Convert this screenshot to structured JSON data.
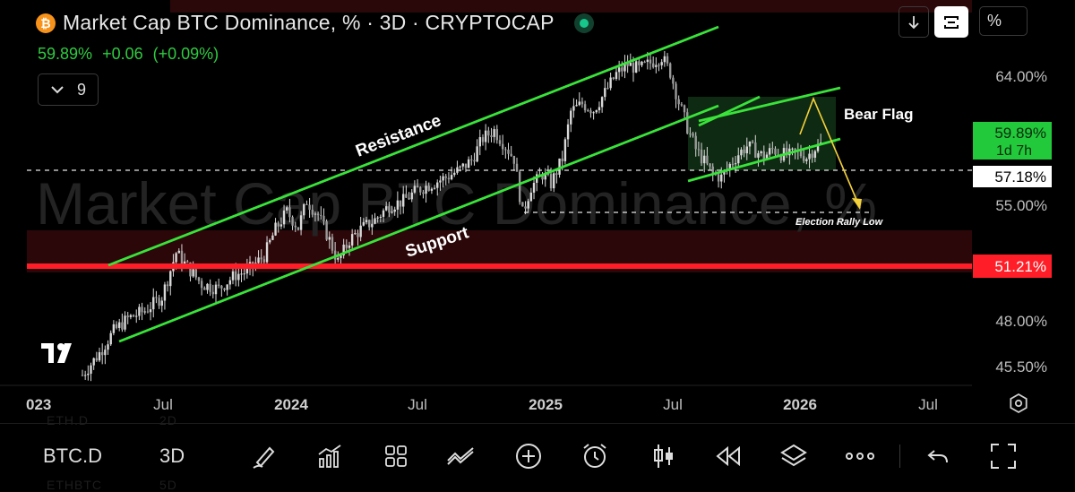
{
  "header": {
    "title": "Market Cap BTC Dominance, % · 3D · CRYPTOCAP",
    "coin_icon": "bitcoin-icon",
    "last": "59.89%",
    "change": "+0.06",
    "change_pct": "(+0.09%)",
    "indicator_count": "9"
  },
  "toolbar": {
    "percent_label": "%"
  },
  "bottom_bar": {
    "symbol": "BTC.D",
    "interval": "3D",
    "ghost_symbols": [
      "ETH.D",
      "2D",
      "ETHBTC",
      "5D"
    ]
  },
  "colors": {
    "trendline": "#39e33a",
    "level_red": "#ff1e27",
    "projection": "#f5d13a",
    "candle": "#d9d9d9"
  },
  "chart_data": {
    "type": "candlestick",
    "watermark": "Market Cap BTC Dominance, %",
    "x_ticks": [
      "023",
      "Jul",
      "2024",
      "Jul",
      "2025",
      "Jul",
      "2026",
      "Jul"
    ],
    "y_ticks": [
      "64.00%",
      "55.00%",
      "48.00%",
      "45.50%"
    ],
    "price_labels": [
      {
        "value": "59.89%",
        "sub": "1d 7h",
        "style": "current"
      },
      {
        "value": "57.18%",
        "style": "dashed-level"
      },
      {
        "value": "51.21%",
        "style": "red-level"
      }
    ],
    "annotations": {
      "resistance": "Resistance",
      "support": "Support",
      "bear_flag": "Bear Flag",
      "election_low": "Election Rally Low"
    },
    "path": [
      [
        0,
        44.8
      ],
      [
        6,
        46.2
      ],
      [
        11,
        47.6
      ],
      [
        16,
        48.4
      ],
      [
        22,
        48.9
      ],
      [
        28,
        49.8
      ],
      [
        33,
        52.6
      ],
      [
        36,
        51.9
      ],
      [
        42,
        50.6
      ],
      [
        48,
        50.3
      ],
      [
        54,
        51.2
      ],
      [
        58,
        51.4
      ],
      [
        64,
        52.4
      ],
      [
        68,
        54.1
      ],
      [
        72,
        55.2
      ],
      [
        76,
        54.2
      ],
      [
        79,
        55.9
      ],
      [
        83,
        55.0
      ],
      [
        87,
        53.4
      ],
      [
        90,
        52.0
      ],
      [
        94,
        53.4
      ],
      [
        98,
        54.1
      ],
      [
        103,
        54.7
      ],
      [
        108,
        55.6
      ],
      [
        113,
        55.9
      ],
      [
        118,
        56.6
      ],
      [
        123,
        57.0
      ],
      [
        128,
        57.4
      ],
      [
        133,
        57.9
      ],
      [
        137,
        58.5
      ],
      [
        141,
        59.9
      ],
      [
        145,
        60.4
      ],
      [
        149,
        59.4
      ],
      [
        152,
        58.6
      ],
      [
        155,
        55.1
      ],
      [
        158,
        56.8
      ],
      [
        162,
        57.6
      ],
      [
        165,
        57.0
      ],
      [
        169,
        58.6
      ],
      [
        172,
        61.6
      ],
      [
        176,
        62.1
      ],
      [
        180,
        61.7
      ],
      [
        184,
        62.8
      ],
      [
        188,
        64.0
      ],
      [
        192,
        64.6
      ],
      [
        196,
        64.3
      ],
      [
        200,
        64.7
      ],
      [
        204,
        65.1
      ],
      [
        207,
        64.1
      ],
      [
        210,
        62.2
      ],
      [
        213,
        60.6
      ],
      [
        216,
        59.2
      ],
      [
        219,
        58.4
      ],
      [
        222,
        57.6
      ],
      [
        225,
        57.4
      ],
      [
        228,
        58.2
      ],
      [
        231,
        58.9
      ],
      [
        234,
        59.4
      ],
      [
        237,
        59.1
      ],
      [
        240,
        58.7
      ],
      [
        243,
        59.2
      ],
      [
        246,
        58.9
      ],
      [
        249,
        58.8
      ],
      [
        252,
        59.0
      ],
      [
        255,
        58.7
      ],
      [
        258,
        59.3
      ],
      [
        260,
        59.5
      ]
    ]
  }
}
